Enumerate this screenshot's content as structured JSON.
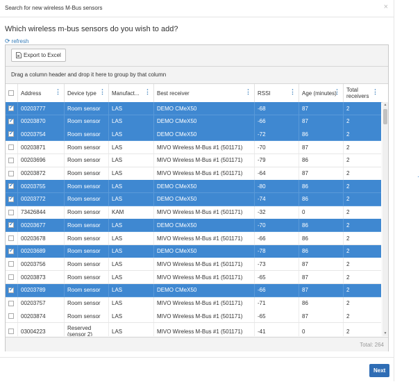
{
  "dialog": {
    "title": "Search for new wireless M-Bus sensors",
    "close_glyph": "×",
    "question": "Which wireless m-bus sensors do you wish to add?",
    "refresh_label": "refresh",
    "refresh_icon": "refresh-icon",
    "next_label": "Next"
  },
  "toolbar": {
    "export_label": "Export to Excel",
    "export_icon": "excel-file-icon"
  },
  "grouping": {
    "hint": "Drag a column header and drop it here to group by that column"
  },
  "columns": [
    {
      "key": "check",
      "label": ""
    },
    {
      "key": "address",
      "label": "Address"
    },
    {
      "key": "device",
      "label": "Device type"
    },
    {
      "key": "manuf",
      "label": "Manufact..."
    },
    {
      "key": "receiver",
      "label": "Best receiver"
    },
    {
      "key": "rssi",
      "label": "RSSI"
    },
    {
      "key": "age",
      "label": "Age (minutes)"
    },
    {
      "key": "total",
      "label": "Total receivers"
    }
  ],
  "menu_glyph": "⋮",
  "rows": [
    {
      "selected": true,
      "address": "00203777",
      "device": "Room sensor",
      "manuf": "LAS",
      "receiver": "DEMO CMeX50",
      "rssi": "-68",
      "age": "87",
      "total": "2"
    },
    {
      "selected": true,
      "address": "00203870",
      "device": "Room sensor",
      "manuf": "LAS",
      "receiver": "DEMO CMeX50",
      "rssi": "-66",
      "age": "87",
      "total": "2"
    },
    {
      "selected": true,
      "address": "00203754",
      "device": "Room sensor",
      "manuf": "LAS",
      "receiver": "DEMO CMeX50",
      "rssi": "-72",
      "age": "86",
      "total": "2"
    },
    {
      "selected": false,
      "address": "00203871",
      "device": "Room sensor",
      "manuf": "LAS",
      "receiver": "MIVO Wireless M-Bus #1 (501171)",
      "rssi": "-70",
      "age": "87",
      "total": "2"
    },
    {
      "selected": false,
      "address": "00203696",
      "device": "Room sensor",
      "manuf": "LAS",
      "receiver": "MIVO Wireless M-Bus #1 (501171)",
      "rssi": "-79",
      "age": "86",
      "total": "2"
    },
    {
      "selected": false,
      "address": "00203872",
      "device": "Room sensor",
      "manuf": "LAS",
      "receiver": "MIVO Wireless M-Bus #1 (501171)",
      "rssi": "-64",
      "age": "87",
      "total": "2"
    },
    {
      "selected": true,
      "address": "00203755",
      "device": "Room sensor",
      "manuf": "LAS",
      "receiver": "DEMO CMeX50",
      "rssi": "-80",
      "age": "86",
      "total": "2"
    },
    {
      "selected": true,
      "address": "00203772",
      "device": "Room sensor",
      "manuf": "LAS",
      "receiver": "DEMO CMeX50",
      "rssi": "-74",
      "age": "86",
      "total": "2"
    },
    {
      "selected": false,
      "address": "73426844",
      "device": "Room sensor",
      "manuf": "KAM",
      "receiver": "MIVO Wireless M-Bus #1 (501171)",
      "rssi": "-32",
      "age": "0",
      "total": "2"
    },
    {
      "selected": true,
      "address": "00203677",
      "device": "Room sensor",
      "manuf": "LAS",
      "receiver": "DEMO CMeX50",
      "rssi": "-70",
      "age": "86",
      "total": "2"
    },
    {
      "selected": false,
      "address": "00203678",
      "device": "Room sensor",
      "manuf": "LAS",
      "receiver": "MIVO Wireless M-Bus #1 (501171)",
      "rssi": "-66",
      "age": "86",
      "total": "2"
    },
    {
      "selected": true,
      "address": "00203689",
      "device": "Room sensor",
      "manuf": "LAS",
      "receiver": "DEMO CMeX50",
      "rssi": "-78",
      "age": "86",
      "total": "2"
    },
    {
      "selected": false,
      "address": "00203756",
      "device": "Room sensor",
      "manuf": "LAS",
      "receiver": "MIVO Wireless M-Bus #1 (501171)",
      "rssi": "-73",
      "age": "87",
      "total": "2"
    },
    {
      "selected": false,
      "address": "00203873",
      "device": "Room sensor",
      "manuf": "LAS",
      "receiver": "MIVO Wireless M-Bus #1 (501171)",
      "rssi": "-65",
      "age": "87",
      "total": "2"
    },
    {
      "selected": true,
      "address": "00203789",
      "device": "Room sensor",
      "manuf": "LAS",
      "receiver": "DEMO CMeX50",
      "rssi": "-66",
      "age": "87",
      "total": "2"
    },
    {
      "selected": false,
      "address": "00203757",
      "device": "Room sensor",
      "manuf": "LAS",
      "receiver": "MIVO Wireless M-Bus #1 (501171)",
      "rssi": "-71",
      "age": "86",
      "total": "2"
    },
    {
      "selected": false,
      "address": "00203874",
      "device": "Room sensor",
      "manuf": "LAS",
      "receiver": "MIVO Wireless M-Bus #1 (501171)",
      "rssi": "-65",
      "age": "87",
      "total": "2"
    },
    {
      "selected": false,
      "address": "03004223",
      "device": "Reserved (sensor 2)",
      "manuf": "LAS",
      "receiver": "MIVO Wireless M-Bus #1 (501171)",
      "rssi": "-41",
      "age": "0",
      "total": "2"
    }
  ],
  "footer": {
    "total": "Total: 264"
  },
  "colors": {
    "selected_row": "#3f88d1",
    "accent": "#337ab7",
    "next_button": "#2f6db5"
  }
}
